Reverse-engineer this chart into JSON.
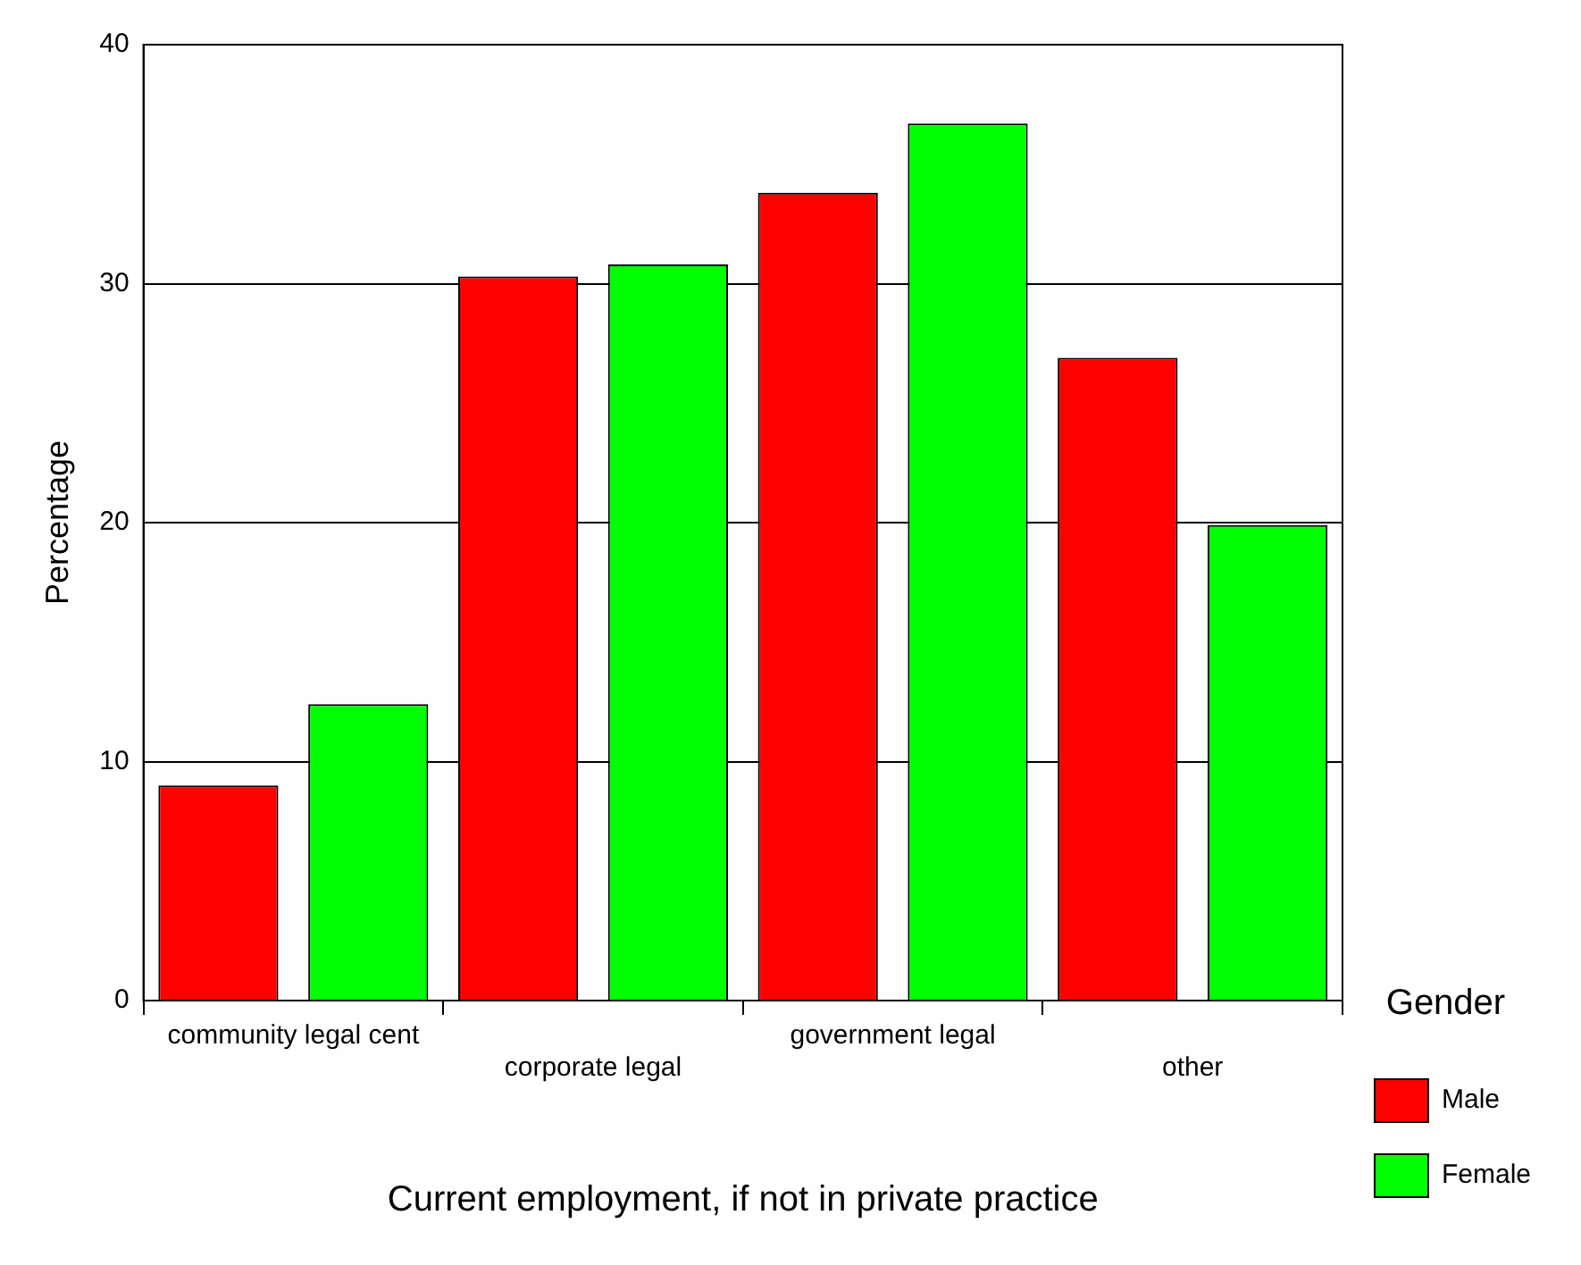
{
  "chart_data": {
    "type": "bar",
    "xlabel": "Current employment, if not in private practice",
    "ylabel": "Percentage",
    "legend_title": "Gender",
    "categories": [
      "community legal cent",
      "corporate legal",
      "government legal",
      "other"
    ],
    "series": [
      {
        "name": "Male",
        "color": "#ff0000",
        "values": [
          9.0,
          30.3,
          33.8,
          26.9
        ]
      },
      {
        "name": "Female",
        "color": "#00ff00",
        "values": [
          12.4,
          30.8,
          36.7,
          19.9
        ]
      }
    ],
    "ylim": [
      0,
      40
    ],
    "yticks": [
      0,
      10,
      20,
      30,
      40
    ],
    "grid": "y",
    "legend": "right"
  }
}
